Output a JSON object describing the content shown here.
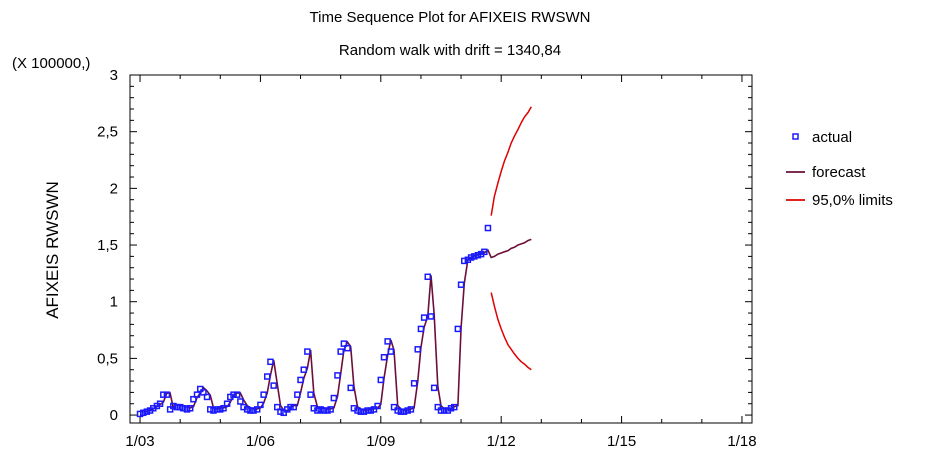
{
  "chart_data": {
    "type": "line",
    "title": "Time Sequence Plot for AFIXEIS RWSWN",
    "subtitle": "Random walk with drift = 1340,84",
    "ylabel": "AFIXEIS RWSWN",
    "y_multiplier_label": "(X 100000,)",
    "xlabel": "",
    "x_ticks": [
      {
        "t": 2003.0,
        "label": "1/03"
      },
      {
        "t": 2006.0,
        "label": "1/06"
      },
      {
        "t": 2009.0,
        "label": "1/09"
      },
      {
        "t": 2012.0,
        "label": "1/12"
      },
      {
        "t": 2015.0,
        "label": "1/15"
      },
      {
        "t": 2018.0,
        "label": "1/18"
      }
    ],
    "y_ticks": [
      {
        "v": 0,
        "label": "0"
      },
      {
        "v": 0.5,
        "label": "0,5"
      },
      {
        "v": 1,
        "label": "1"
      },
      {
        "v": 1.5,
        "label": "1,5"
      },
      {
        "v": 2,
        "label": "2"
      },
      {
        "v": 2.5,
        "label": "2,5"
      },
      {
        "v": 3,
        "label": "3"
      }
    ],
    "xlim": [
      2002.75,
      2018.25
    ],
    "ylim": [
      -0.07,
      3.0
    ],
    "grid": false,
    "legend_position": "right",
    "legend": [
      "actual",
      "forecast",
      "95,0% limits"
    ],
    "colors": {
      "actual": "#1a1aff",
      "forecast": "#6b0f3a",
      "limits": "#e00000"
    },
    "actual": {
      "t": [
        2003.0,
        2003.08,
        2003.17,
        2003.25,
        2003.33,
        2003.42,
        2003.5,
        2003.58,
        2003.67,
        2003.75,
        2003.83,
        2003.92,
        2004.0,
        2004.08,
        2004.17,
        2004.25,
        2004.33,
        2004.42,
        2004.5,
        2004.58,
        2004.67,
        2004.75,
        2004.83,
        2004.92,
        2005.0,
        2005.08,
        2005.17,
        2005.25,
        2005.33,
        2005.42,
        2005.5,
        2005.58,
        2005.67,
        2005.75,
        2005.83,
        2005.92,
        2006.0,
        2006.08,
        2006.17,
        2006.25,
        2006.33,
        2006.42,
        2006.5,
        2006.58,
        2006.67,
        2006.75,
        2006.83,
        2006.92,
        2007.0,
        2007.08,
        2007.17,
        2007.25,
        2007.33,
        2007.42,
        2007.5,
        2007.58,
        2007.67,
        2007.75,
        2007.83,
        2007.92,
        2008.0,
        2008.08,
        2008.17,
        2008.25,
        2008.33,
        2008.42,
        2008.5,
        2008.58,
        2008.67,
        2008.75,
        2008.83,
        2008.92,
        2009.0,
        2009.08,
        2009.17,
        2009.25,
        2009.33,
        2009.42,
        2009.5,
        2009.58,
        2009.67,
        2009.75,
        2009.83,
        2009.92,
        2010.0,
        2010.08,
        2010.17,
        2010.25,
        2010.33,
        2010.42,
        2010.5,
        2010.58,
        2010.67,
        2010.75,
        2010.83,
        2010.92,
        2011.0,
        2011.08,
        2011.17,
        2011.25,
        2011.33,
        2011.42,
        2011.5,
        2011.58,
        2011.67
      ],
      "y": [
        0.01,
        0.02,
        0.03,
        0.04,
        0.06,
        0.08,
        0.1,
        0.18,
        0.18,
        0.05,
        0.08,
        0.07,
        0.07,
        0.06,
        0.05,
        0.06,
        0.14,
        0.18,
        0.23,
        0.2,
        0.16,
        0.05,
        0.04,
        0.05,
        0.05,
        0.06,
        0.1,
        0.16,
        0.18,
        0.18,
        0.12,
        0.07,
        0.05,
        0.04,
        0.04,
        0.05,
        0.09,
        0.18,
        0.34,
        0.47,
        0.26,
        0.07,
        0.03,
        0.02,
        0.05,
        0.07,
        0.07,
        0.18,
        0.31,
        0.4,
        0.56,
        0.18,
        0.06,
        0.04,
        0.05,
        0.04,
        0.04,
        0.05,
        0.15,
        0.35,
        0.56,
        0.63,
        0.59,
        0.24,
        0.06,
        0.04,
        0.03,
        0.03,
        0.04,
        0.04,
        0.05,
        0.08,
        0.31,
        0.51,
        0.65,
        0.56,
        0.07,
        0.04,
        0.03,
        0.03,
        0.04,
        0.05,
        0.28,
        0.58,
        0.76,
        0.86,
        1.22,
        0.87,
        0.24,
        0.07,
        0.04,
        0.04,
        0.04,
        0.06,
        0.07,
        0.76,
        1.15,
        1.36,
        1.37,
        1.39,
        1.4,
        1.41,
        1.42,
        1.44,
        1.65
      ]
    },
    "forecast": {
      "t": [
        2011.75,
        2011.83,
        2011.92,
        2012.0,
        2012.08,
        2012.17,
        2012.25,
        2012.33,
        2012.42,
        2012.5,
        2012.58,
        2012.67,
        2012.75
      ],
      "y": [
        1.39,
        1.4,
        1.42,
        1.43,
        1.44,
        1.45,
        1.47,
        1.48,
        1.5,
        1.51,
        1.52,
        1.54,
        1.55
      ]
    },
    "upper_limit": {
      "t": [
        2011.75,
        2011.83,
        2011.92,
        2012.0,
        2012.08,
        2012.17,
        2012.25,
        2012.33,
        2012.42,
        2012.5,
        2012.58,
        2012.67,
        2012.75
      ],
      "y": [
        1.76,
        1.93,
        2.05,
        2.15,
        2.24,
        2.32,
        2.4,
        2.46,
        2.52,
        2.58,
        2.63,
        2.67,
        2.72
      ]
    },
    "lower_limit": {
      "t": [
        2011.75,
        2011.83,
        2011.92,
        2012.0,
        2012.08,
        2012.17,
        2012.25,
        2012.33,
        2012.42,
        2012.5,
        2012.58,
        2012.67,
        2012.75
      ],
      "y": [
        1.08,
        0.96,
        0.84,
        0.76,
        0.69,
        0.62,
        0.58,
        0.54,
        0.5,
        0.47,
        0.45,
        0.42,
        0.4
      ]
    }
  }
}
